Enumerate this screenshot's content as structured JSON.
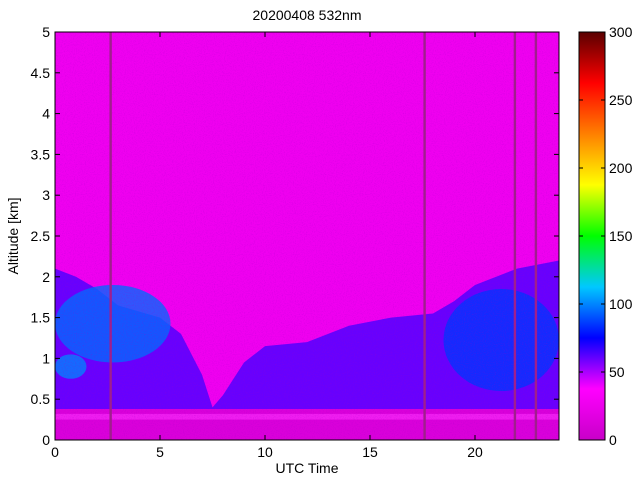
{
  "chart_data": {
    "type": "heatmap",
    "title": "20200408 532nm",
    "xlabel": "UTC Time",
    "ylabel": "Altitude [km]",
    "xlim": [
      0,
      24
    ],
    "ylim": [
      0,
      5
    ],
    "x_ticks": [
      "0",
      "5",
      "10",
      "15",
      "20"
    ],
    "x_tick_values": [
      0,
      5,
      10,
      15,
      20
    ],
    "y_ticks": [
      "0",
      "0.5",
      "1",
      "1.5",
      "2",
      "2.5",
      "3",
      "3.5",
      "4",
      "4.5",
      "5"
    ],
    "y_tick_values": [
      0,
      0.5,
      1,
      1.5,
      2,
      2.5,
      3,
      3.5,
      4,
      4.5,
      5
    ],
    "colorbar": {
      "range": [
        0,
        300
      ],
      "ticks": [
        "0",
        "50",
        "100",
        "150",
        "200",
        "250",
        "300"
      ],
      "tick_values": [
        0,
        50,
        100,
        150,
        200,
        250,
        300
      ],
      "colormap": "hsv-like",
      "colors": [
        "#c800c8",
        "#ff00ff",
        "#0000ff",
        "#00c8ff",
        "#00ff00",
        "#ffff00",
        "#ff8000",
        "#ff0000",
        "#5a0000"
      ]
    },
    "background_value_approx": 25,
    "boundary_layer_top_km": [
      [
        0,
        2.1
      ],
      [
        1,
        2.0
      ],
      [
        2,
        1.85
      ],
      [
        3,
        1.65
      ],
      [
        5,
        1.5
      ],
      [
        6,
        1.3
      ],
      [
        7,
        0.8
      ],
      [
        7.5,
        0.4
      ],
      [
        8,
        0.55
      ],
      [
        9,
        0.95
      ],
      [
        10,
        1.15
      ],
      [
        12,
        1.2
      ],
      [
        14,
        1.4
      ],
      [
        16,
        1.5
      ],
      [
        18,
        1.55
      ],
      [
        19,
        1.7
      ],
      [
        20,
        1.9
      ],
      [
        22,
        2.1
      ],
      [
        24,
        2.2
      ]
    ],
    "aerosol_features": [
      {
        "x_start": 0,
        "x_end": 5.5,
        "bottom_km": 0.95,
        "top_km": 1.9,
        "value_approx": 95
      },
      {
        "x_start": 0,
        "x_end": 1.5,
        "bottom_km": 0.75,
        "top_km": 1.05,
        "value_approx": 100
      },
      {
        "x_start": 18.5,
        "x_end": 24,
        "bottom_km": 0.6,
        "top_km": 1.85,
        "value_approx": 85
      }
    ],
    "near_surface_value_approx": 12,
    "data_gaps_utc": [
      2.65,
      17.6,
      21.9,
      22.9
    ]
  }
}
